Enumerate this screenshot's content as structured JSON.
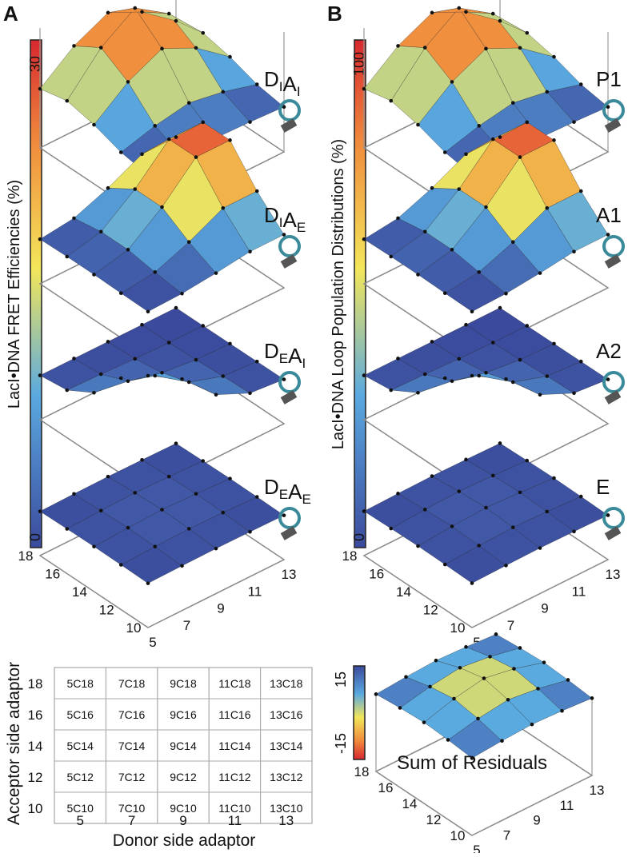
{
  "panels": [
    {
      "label": "A",
      "colorbar": {
        "title": "LacI•DNA FRET Efficiencies (%)",
        "max": "30",
        "min": "0"
      },
      "plots": [
        {
          "label": [
            {
              "t": "D",
              "sub": "I"
            },
            {
              "t": "A",
              "sub": "I"
            }
          ]
        },
        {
          "label": [
            {
              "t": "D",
              "sub": "I"
            },
            {
              "t": "A",
              "sub": "E"
            }
          ]
        },
        {
          "label": [
            {
              "t": "D",
              "sub": "E"
            },
            {
              "t": "A",
              "sub": "I"
            }
          ]
        },
        {
          "label": [
            {
              "t": "D",
              "sub": "E"
            },
            {
              "t": "A",
              "sub": "E"
            }
          ]
        }
      ],
      "acceptor_ticks": [
        "18",
        "16",
        "14",
        "12",
        "10"
      ],
      "donor_ticks": [
        "5",
        "7",
        "9",
        "11",
        "13"
      ]
    },
    {
      "label": "B",
      "colorbar": {
        "title": "LacI•DNA Loop Population Distributions (%)",
        "max": "100",
        "min": "0"
      },
      "plots": [
        {
          "label": "P1"
        },
        {
          "label": "A1"
        },
        {
          "label": "A2"
        },
        {
          "label": "E"
        }
      ],
      "acceptor_ticks": [
        "18",
        "16",
        "14",
        "12",
        "10"
      ],
      "donor_ticks": [
        "5",
        "7",
        "9",
        "11",
        "13"
      ]
    }
  ],
  "residuals": {
    "title": "Sum of Residuals",
    "colorbar": {
      "max": "15",
      "min": "-15"
    },
    "acceptor_ticks": [
      "18",
      "16",
      "14",
      "12",
      "10"
    ],
    "donor_ticks": [
      "5",
      "7",
      "9",
      "11",
      "13"
    ]
  },
  "table": {
    "row_labels": [
      "18",
      "16",
      "14",
      "12",
      "10"
    ],
    "col_labels": [
      "5",
      "7",
      "9",
      "11",
      "13"
    ],
    "rows": [
      [
        "5C18",
        "7C18",
        "9C18",
        "11C18",
        "13C18"
      ],
      [
        "5C16",
        "7C16",
        "9C16",
        "11C16",
        "13C16"
      ],
      [
        "5C14",
        "7C14",
        "9C14",
        "11C14",
        "13C14"
      ],
      [
        "5C12",
        "7C12",
        "9C12",
        "11C12",
        "13C12"
      ],
      [
        "5C10",
        "7C10",
        "9C10",
        "11C10",
        "13C10"
      ]
    ],
    "y_title": "Acceptor side adaptor",
    "x_title": "Donor side adaptor"
  }
}
